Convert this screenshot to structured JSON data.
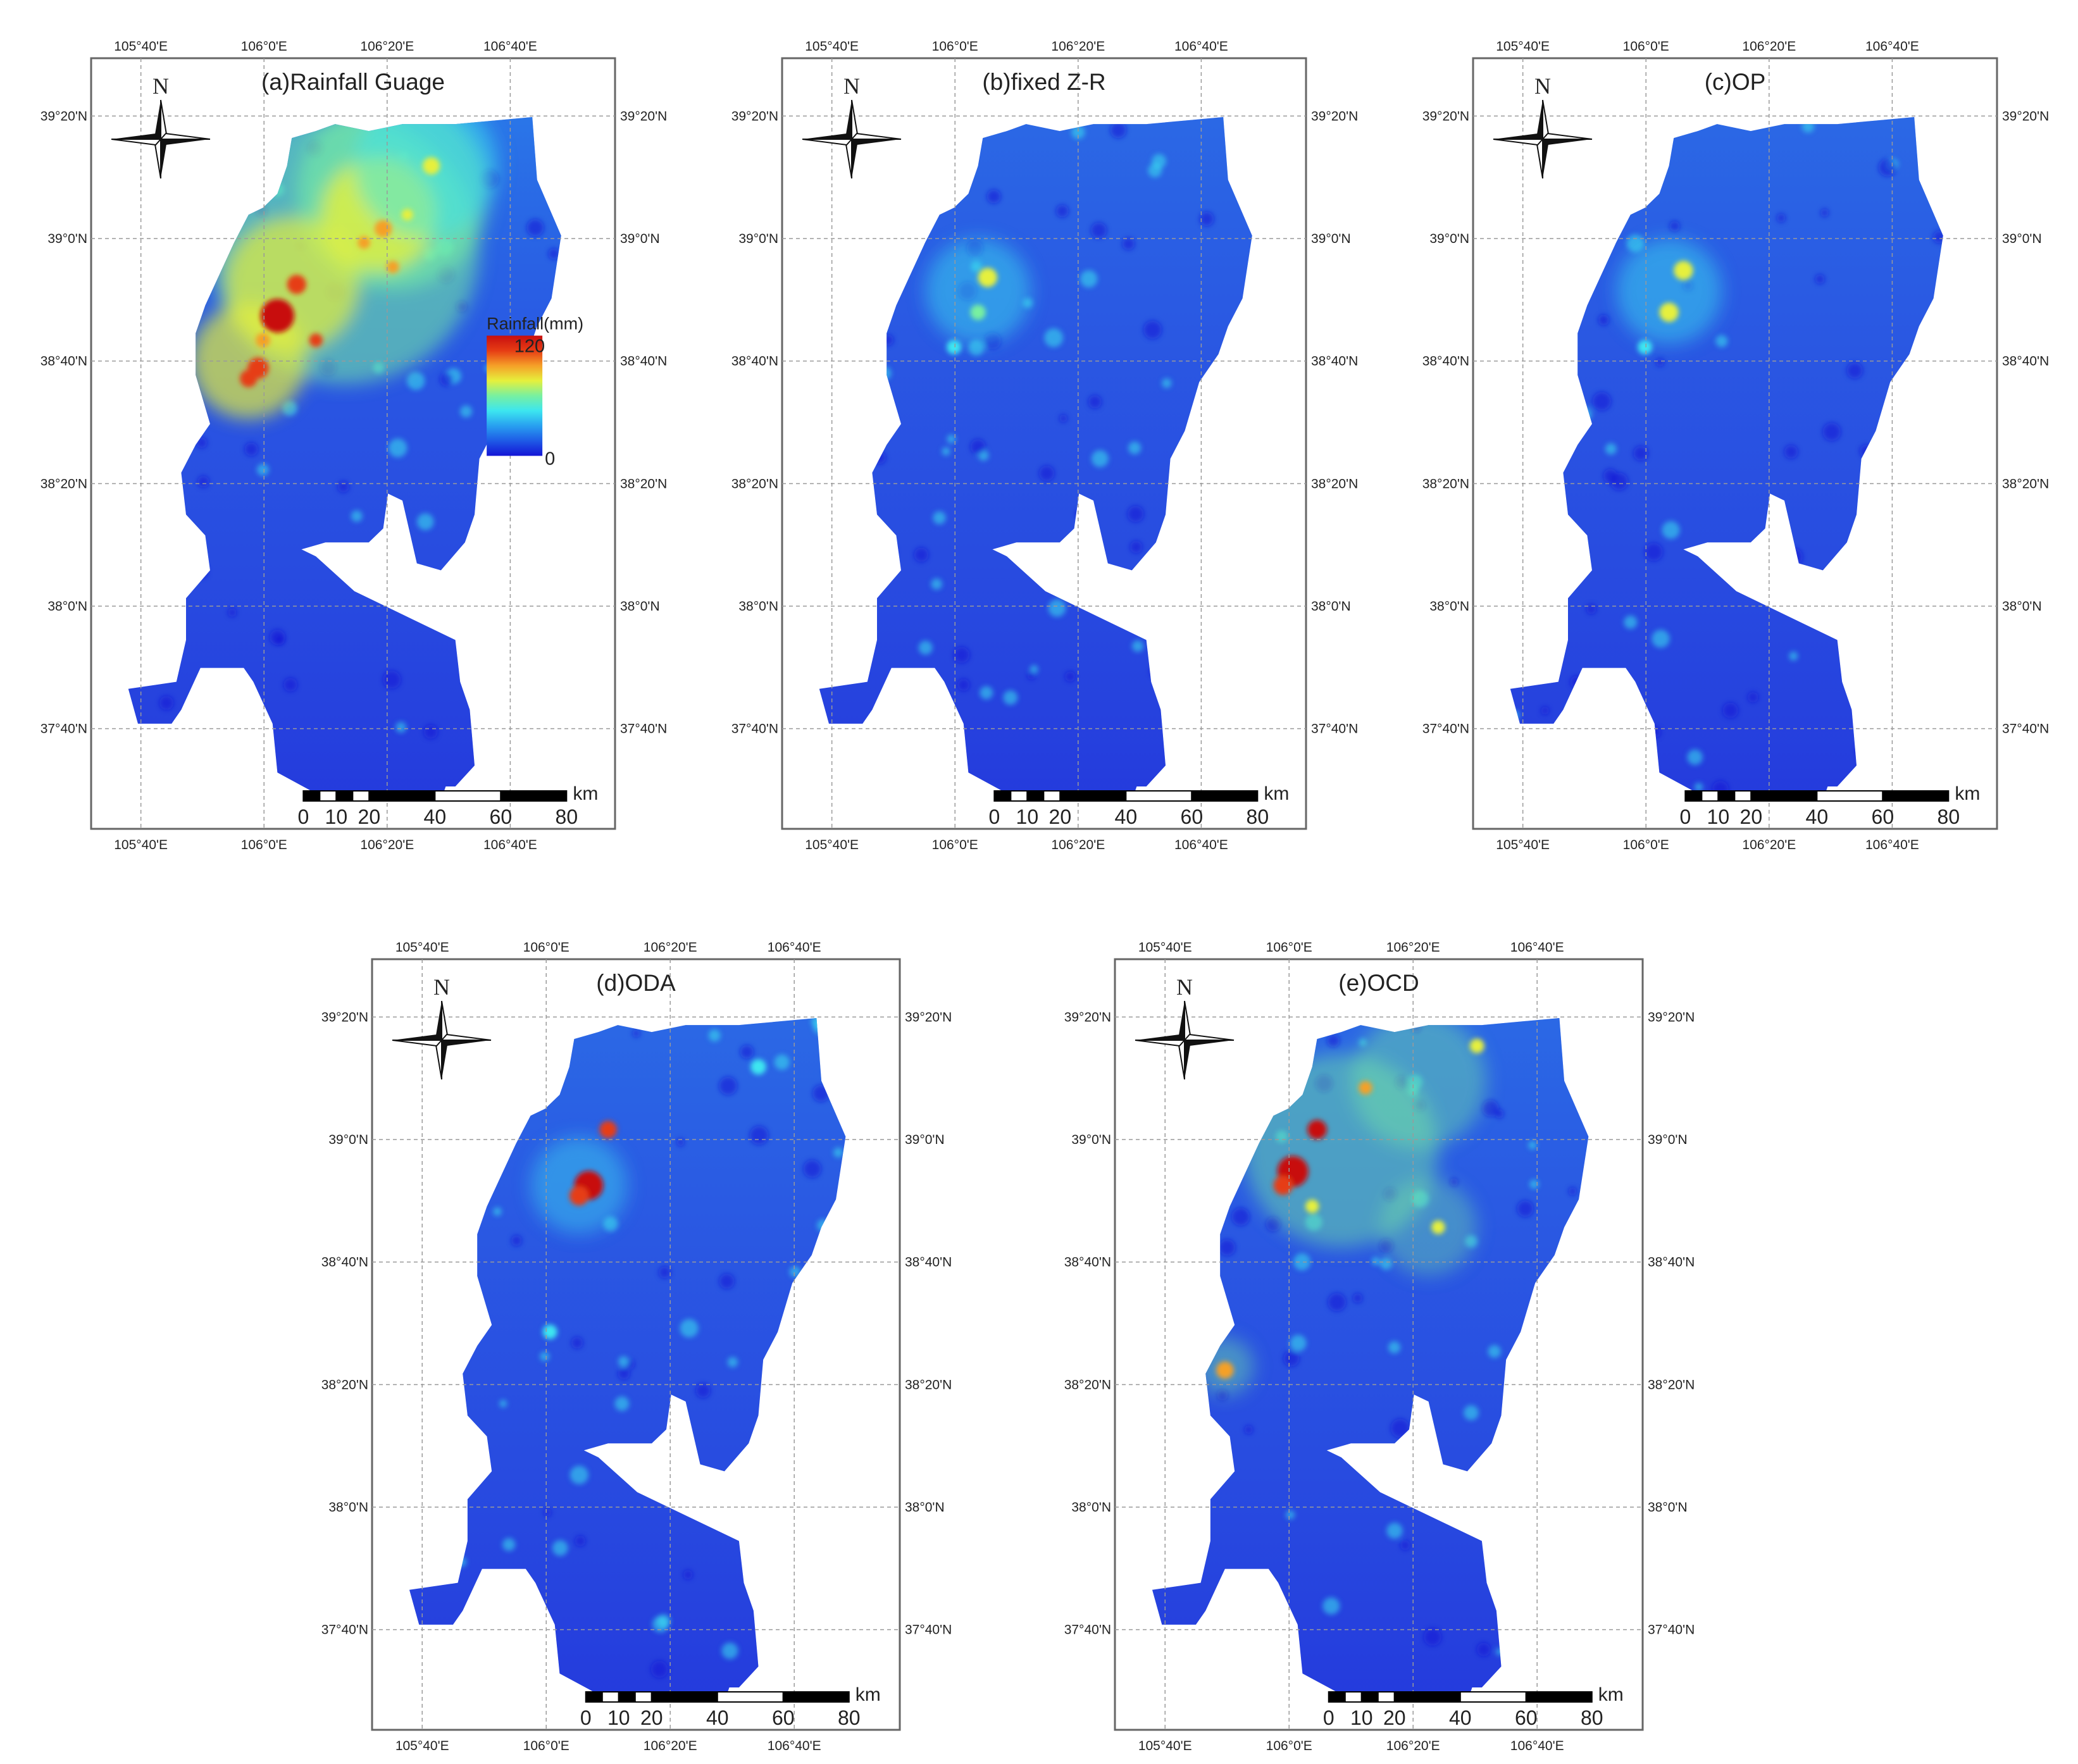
{
  "panels": [
    {
      "id": "a",
      "title": "(a)Rainfall Guage",
      "surface": "rg"
    },
    {
      "id": "b",
      "title": "(b)fixed Z-R",
      "surface": "zr"
    },
    {
      "id": "c",
      "title": "(c)OP",
      "surface": "op"
    },
    {
      "id": "d",
      "title": "(d)ODA",
      "surface": "oda"
    },
    {
      "id": "e",
      "title": "(e)OCD",
      "surface": "ocd"
    }
  ],
  "graticule": {
    "longitudes": [
      "105°40'E",
      "106°0'E",
      "106°20'E",
      "106°40'E"
    ],
    "latitudes": [
      "39°20'N",
      "39°0'N",
      "38°40'N",
      "38°20'N",
      "38°0'N",
      "37°40'N"
    ]
  },
  "north_arrow": {
    "label": "N"
  },
  "scale_bar": {
    "ticks": [
      "0",
      "10",
      "20",
      "40",
      "60",
      "80"
    ],
    "unit": "km"
  },
  "legend": {
    "title": "Rainfall(mm)",
    "max": "120",
    "min": "0"
  },
  "colors": {
    "ramp": [
      "#1414d6",
      "#1e5ae6",
      "#28a0f0",
      "#3ce6f0",
      "#78f0a0",
      "#e6f03c",
      "#f5a028",
      "#e63c14",
      "#c80f0f"
    ],
    "background_region": "#2d4fe0",
    "frame": "#666666"
  }
}
